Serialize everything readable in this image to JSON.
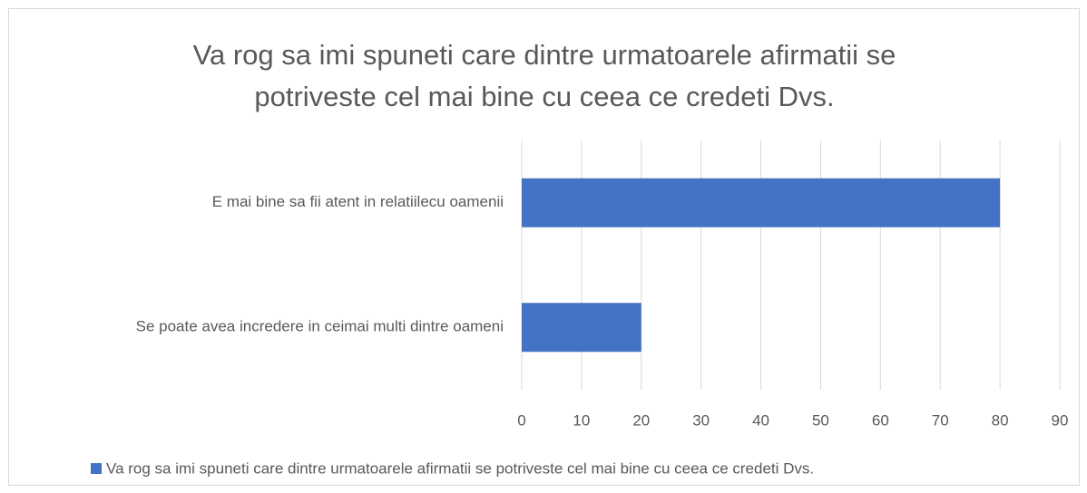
{
  "chart_data": {
    "type": "bar",
    "orientation": "horizontal",
    "title": "Va rog sa imi spuneti care dintre urmatoarele afirmatii se potriveste cel mai bine cu ceea ce credeti Dvs.",
    "categories": [
      "E mai bine sa fii atent in relatiilecu oamenii",
      "Se poate avea incredere in ceimai multi dintre oameni"
    ],
    "series": [
      {
        "name": "Va rog sa imi spuneti care dintre urmatoarele afirmatii se potriveste cel mai bine cu ceea ce credeti Dvs.",
        "color": "#4472c4",
        "values": [
          80,
          20
        ]
      }
    ],
    "xlim": [
      0,
      90
    ],
    "xticks": [
      0,
      10,
      20,
      30,
      40,
      50,
      60,
      70,
      80,
      90
    ],
    "grid": true,
    "legend": "bottom"
  }
}
